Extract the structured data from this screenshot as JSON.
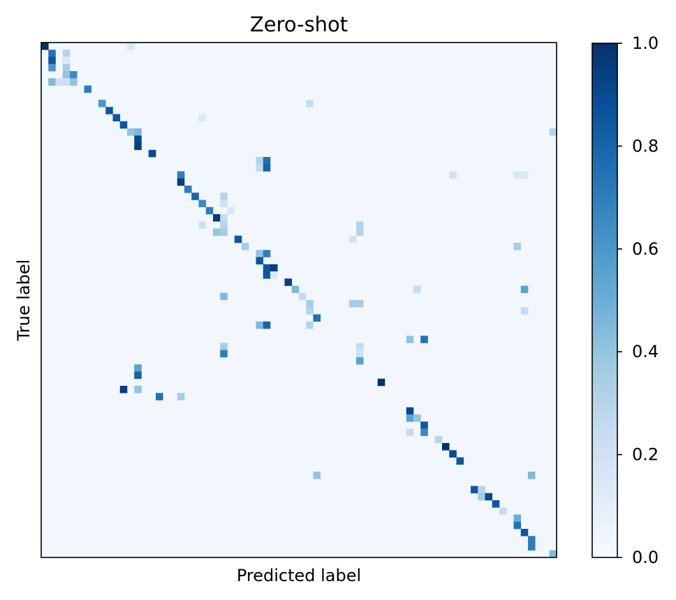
{
  "chart_data": {
    "type": "heatmap",
    "title": "Zero-shot",
    "xlabel": "Predicted label",
    "ylabel": "True label",
    "colormap": "Blues",
    "vmin": 0.0,
    "vmax": 1.0,
    "n_classes": 72,
    "colorbar_ticks": [
      "0.0",
      "0.2",
      "0.4",
      "0.6",
      "0.8",
      "1.0"
    ],
    "colorbar_tick_values": [
      0.0,
      0.2,
      0.4,
      0.6,
      0.8,
      1.0
    ],
    "x_ticks": "none",
    "y_ticks": "none",
    "cells": [
      [
        0,
        0,
        1.0
      ],
      [
        0,
        12,
        0.15
      ],
      [
        1,
        1,
        0.75
      ],
      [
        1,
        3,
        0.3
      ],
      [
        2,
        1,
        0.85
      ],
      [
        2,
        3,
        0.15
      ],
      [
        3,
        1,
        0.6
      ],
      [
        3,
        3,
        0.35
      ],
      [
        4,
        3,
        0.4
      ],
      [
        4,
        4,
        0.65
      ],
      [
        5,
        1,
        0.45
      ],
      [
        5,
        2,
        0.2
      ],
      [
        5,
        3,
        0.2
      ],
      [
        5,
        4,
        0.4
      ],
      [
        6,
        6,
        0.7
      ],
      [
        8,
        8,
        0.6
      ],
      [
        8,
        37,
        0.25
      ],
      [
        9,
        9,
        0.85
      ],
      [
        10,
        10,
        0.85
      ],
      [
        10,
        22,
        0.15
      ],
      [
        11,
        11,
        0.85
      ],
      [
        12,
        12,
        0.4
      ],
      [
        12,
        13,
        0.45
      ],
      [
        12,
        71,
        0.3
      ],
      [
        13,
        13,
        0.9
      ],
      [
        14,
        13,
        0.95
      ],
      [
        15,
        15,
        0.9
      ],
      [
        16,
        30,
        0.3
      ],
      [
        16,
        31,
        0.75
      ],
      [
        17,
        30,
        0.25
      ],
      [
        17,
        31,
        0.8
      ],
      [
        18,
        19,
        0.7
      ],
      [
        18,
        57,
        0.2
      ],
      [
        18,
        66,
        0.15
      ],
      [
        18,
        67,
        0.15
      ],
      [
        19,
        19,
        0.95
      ],
      [
        20,
        20,
        0.7
      ],
      [
        21,
        21,
        0.8
      ],
      [
        21,
        25,
        0.3
      ],
      [
        22,
        22,
        0.65
      ],
      [
        22,
        25,
        0.2
      ],
      [
        23,
        23,
        0.7
      ],
      [
        23,
        26,
        0.15
      ],
      [
        24,
        24,
        0.95
      ],
      [
        24,
        25,
        0.25
      ],
      [
        25,
        22,
        0.2
      ],
      [
        25,
        25,
        0.3
      ],
      [
        25,
        44,
        0.3
      ],
      [
        26,
        24,
        0.4
      ],
      [
        26,
        25,
        0.35
      ],
      [
        26,
        44,
        0.3
      ],
      [
        27,
        27,
        0.85
      ],
      [
        27,
        43,
        0.2
      ],
      [
        28,
        28,
        0.35
      ],
      [
        28,
        66,
        0.35
      ],
      [
        29,
        30,
        0.4
      ],
      [
        29,
        31,
        0.7
      ],
      [
        30,
        30,
        0.85
      ],
      [
        31,
        31,
        0.85
      ],
      [
        31,
        32,
        0.95
      ],
      [
        32,
        31,
        0.85
      ],
      [
        32,
        32,
        0.15
      ],
      [
        33,
        34,
        0.95
      ],
      [
        34,
        35,
        0.45
      ],
      [
        34,
        52,
        0.25
      ],
      [
        34,
        67,
        0.55
      ],
      [
        35,
        25,
        0.45
      ],
      [
        35,
        36,
        0.25
      ],
      [
        36,
        37,
        0.35
      ],
      [
        36,
        43,
        0.35
      ],
      [
        36,
        44,
        0.35
      ],
      [
        37,
        37,
        0.3
      ],
      [
        37,
        67,
        0.25
      ],
      [
        38,
        38,
        0.75
      ],
      [
        39,
        30,
        0.45
      ],
      [
        39,
        31,
        0.8
      ],
      [
        39,
        37,
        0.3
      ],
      [
        41,
        51,
        0.4
      ],
      [
        41,
        53,
        0.75
      ],
      [
        42,
        25,
        0.35
      ],
      [
        42,
        44,
        0.25
      ],
      [
        43,
        25,
        0.7
      ],
      [
        43,
        44,
        0.2
      ],
      [
        44,
        44,
        0.55
      ],
      [
        45,
        13,
        0.55
      ],
      [
        46,
        13,
        0.8
      ],
      [
        47,
        47,
        1.0
      ],
      [
        48,
        11,
        0.95
      ],
      [
        48,
        13,
        0.4
      ],
      [
        49,
        16,
        0.75
      ],
      [
        49,
        19,
        0.35
      ],
      [
        51,
        51,
        0.9
      ],
      [
        52,
        51,
        0.55
      ],
      [
        52,
        52,
        0.4
      ],
      [
        53,
        53,
        0.85
      ],
      [
        54,
        53,
        0.65
      ],
      [
        54,
        51,
        0.25
      ],
      [
        55,
        55,
        0.3
      ],
      [
        56,
        56,
        1.0
      ],
      [
        57,
        57,
        0.9
      ],
      [
        58,
        58,
        0.85
      ],
      [
        60,
        38,
        0.4
      ],
      [
        60,
        68,
        0.45
      ],
      [
        62,
        60,
        0.85
      ],
      [
        62,
        61,
        0.3
      ],
      [
        63,
        61,
        0.35
      ],
      [
        63,
        62,
        0.9
      ],
      [
        64,
        63,
        0.85
      ],
      [
        65,
        64,
        0.25
      ],
      [
        66,
        66,
        0.5
      ],
      [
        67,
        66,
        0.75
      ],
      [
        68,
        67,
        0.85
      ],
      [
        69,
        68,
        0.7
      ],
      [
        70,
        68,
        0.7
      ],
      [
        71,
        71,
        0.45
      ]
    ],
    "background_value": 0.03
  }
}
